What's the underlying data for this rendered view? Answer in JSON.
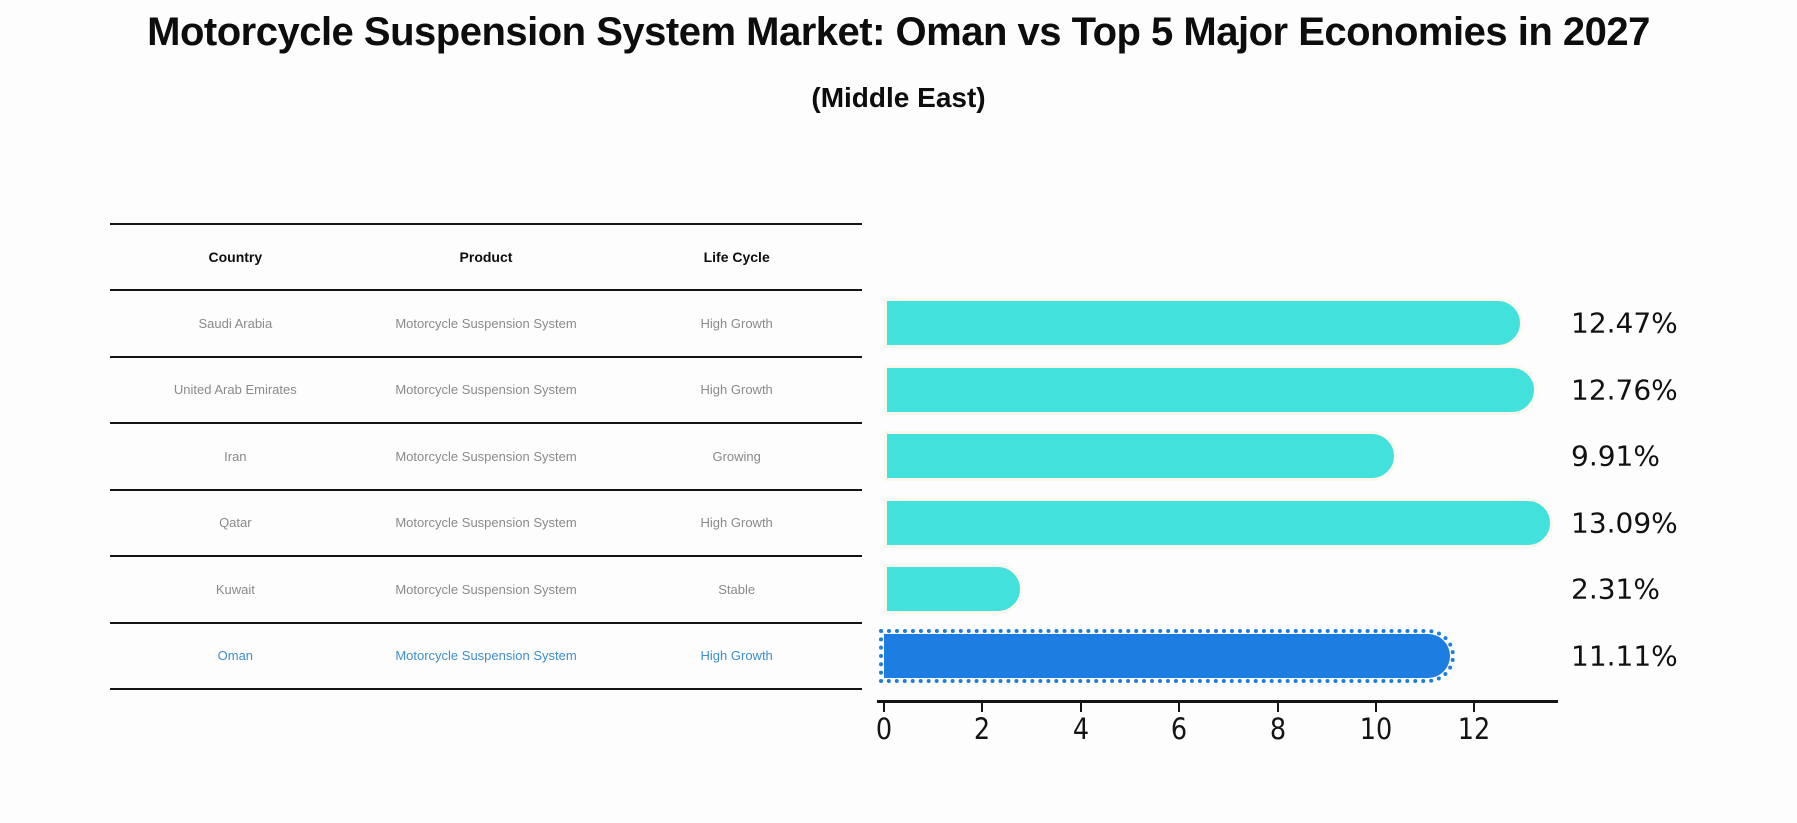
{
  "title": "Motorcycle Suspension System Market: Oman vs Top 5 Major Economies in 2027",
  "subtitle": "(Middle East)",
  "table": {
    "headers": [
      "Country",
      "Product",
      "Life Cycle"
    ],
    "rows": [
      {
        "country": "Saudi Arabia",
        "product": "Motorcycle Suspension System",
        "life_cycle": "High Growth"
      },
      {
        "country": "United Arab Emirates",
        "product": "Motorcycle Suspension System",
        "life_cycle": "High Growth"
      },
      {
        "country": "Iran",
        "product": "Motorcycle Suspension System",
        "life_cycle": "Growing"
      },
      {
        "country": "Qatar",
        "product": "Motorcycle Suspension System",
        "life_cycle": "High Growth"
      },
      {
        "country": "Kuwait",
        "product": "Motorcycle Suspension System",
        "life_cycle": "Stable"
      },
      {
        "country": "Oman",
        "product": "Motorcycle Suspension System",
        "life_cycle": "High Growth"
      }
    ],
    "highlight_row_index": 5
  },
  "chart_data": {
    "type": "bar",
    "orientation": "horizontal",
    "title": "Motorcycle Suspension System Market: Oman vs Top 5 Major Economies in 2027 (Middle East)",
    "categories": [
      "Saudi Arabia",
      "United Arab Emirates",
      "Iran",
      "Qatar",
      "Kuwait",
      "Oman"
    ],
    "values": [
      12.47,
      12.76,
      9.91,
      13.09,
      2.31,
      11.11
    ],
    "value_labels": [
      "12.47%",
      "12.76%",
      "9.91%",
      "13.09%",
      "2.31%",
      "11.11%"
    ],
    "unit": "percent",
    "xlabel": "",
    "ylabel": "",
    "xlim": [
      0,
      13.7
    ],
    "x_ticks": [
      0,
      2,
      4,
      6,
      8,
      10,
      12
    ],
    "grid": false,
    "legend": false,
    "bar_color": "#42E1DC",
    "highlight_color": "#1E7DE0",
    "highlight_index": 5,
    "highlight_style": "dotted-edge"
  },
  "colors": {
    "background": "#fdfdfd",
    "text": "#0d0d0d",
    "table_text_muted": "#8a8a8a",
    "table_text_highlight": "#3d8ed0",
    "axis": "#141414"
  }
}
